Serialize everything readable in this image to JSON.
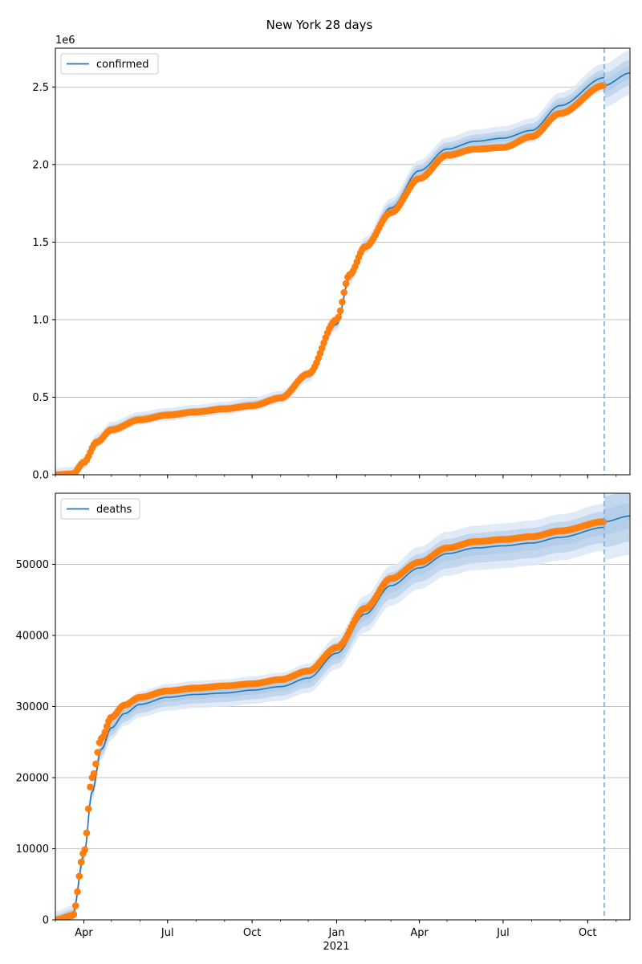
{
  "figure": {
    "title": "New York 28 days",
    "year_label": "2021"
  },
  "colors": {
    "model_line": "#1f77b4",
    "band_inner": "#a9c6e6",
    "band_outer": "#dde9f6",
    "observed": "#ff7f0e",
    "forecast_marker": "#7ba9d6",
    "grid": "#b0b0b0"
  },
  "chart_data": [
    {
      "type": "line",
      "panel": "top",
      "legend": "top-left",
      "grid_y": true,
      "grid_x": false,
      "xlim": [
        "2020-03-01",
        "2021-11-16"
      ],
      "ylim": [
        0,
        2750000
      ],
      "y_multiplier_label": "1e6",
      "y_ticks": [
        0,
        500000,
        1000000,
        1500000,
        2000000,
        2500000
      ],
      "y_tick_labels": [
        "0.0",
        "0.5",
        "1.0",
        "1.5",
        "2.0",
        "2.5"
      ],
      "x_ticks": [
        "2020-04-01",
        "2020-07-01",
        "2020-10-01",
        "2021-01-01",
        "2021-04-01",
        "2021-07-01",
        "2021-10-01"
      ],
      "x_tick_labels": [
        "Apr",
        "Jul",
        "Oct",
        "Jan",
        "Apr",
        "Jul",
        "Oct"
      ],
      "forecast_start": "2021-10-19",
      "series": [
        {
          "name": "confirmed",
          "role": "model",
          "points": [
            [
              "2020-03-01",
              0
            ],
            [
              "2020-03-20",
              10000
            ],
            [
              "2020-04-01",
              80000
            ],
            [
              "2020-04-15",
              220000
            ],
            [
              "2020-05-01",
              300000
            ],
            [
              "2020-06-01",
              365000
            ],
            [
              "2020-07-01",
              390000
            ],
            [
              "2020-08-01",
              410000
            ],
            [
              "2020-09-01",
              430000
            ],
            [
              "2020-10-01",
              455000
            ],
            [
              "2020-11-01",
              500000
            ],
            [
              "2020-12-01",
              640000
            ],
            [
              "2021-01-01",
              970000
            ],
            [
              "2021-01-15",
              1270000
            ],
            [
              "2021-02-01",
              1480000
            ],
            [
              "2021-03-01",
              1720000
            ],
            [
              "2021-04-01",
              1960000
            ],
            [
              "2021-05-01",
              2100000
            ],
            [
              "2021-06-01",
              2150000
            ],
            [
              "2021-07-01",
              2170000
            ],
            [
              "2021-08-01",
              2220000
            ],
            [
              "2021-09-01",
              2380000
            ],
            [
              "2021-10-19",
              2560000
            ]
          ]
        },
        {
          "role": "forecast",
          "points": [
            [
              "2021-10-19",
              2510000
            ],
            [
              "2021-11-16",
              2590000
            ]
          ]
        },
        {
          "role": "observed",
          "points": [
            [
              "2020-03-01",
              0
            ],
            [
              "2020-03-20",
              5000
            ],
            [
              "2020-04-01",
              80000
            ],
            [
              "2020-04-15",
              210000
            ],
            [
              "2020-05-01",
              290000
            ],
            [
              "2020-06-01",
              355000
            ],
            [
              "2020-07-01",
              385000
            ],
            [
              "2020-08-01",
              405000
            ],
            [
              "2020-09-01",
              425000
            ],
            [
              "2020-10-01",
              445000
            ],
            [
              "2020-11-01",
              495000
            ],
            [
              "2020-12-01",
              650000
            ],
            [
              "2021-01-01",
              1000000
            ],
            [
              "2021-01-15",
              1290000
            ],
            [
              "2021-02-01",
              1470000
            ],
            [
              "2021-03-01",
              1690000
            ],
            [
              "2021-04-01",
              1910000
            ],
            [
              "2021-05-01",
              2060000
            ],
            [
              "2021-06-01",
              2100000
            ],
            [
              "2021-07-01",
              2110000
            ],
            [
              "2021-08-01",
              2180000
            ],
            [
              "2021-09-01",
              2330000
            ],
            [
              "2021-10-19",
              2510000
            ]
          ]
        }
      ]
    },
    {
      "type": "line",
      "panel": "bottom",
      "legend": "top-left",
      "grid_y": true,
      "grid_x": false,
      "xlim": [
        "2020-03-01",
        "2021-11-16"
      ],
      "ylim": [
        0,
        60000
      ],
      "y_ticks": [
        0,
        10000,
        20000,
        30000,
        40000,
        50000
      ],
      "y_tick_labels": [
        "0",
        "10000",
        "20000",
        "30000",
        "40000",
        "50000"
      ],
      "x_ticks": [
        "2020-04-01",
        "2020-07-01",
        "2020-10-01",
        "2021-01-01",
        "2021-04-01",
        "2021-07-01",
        "2021-10-01"
      ],
      "x_tick_labels": [
        "Apr",
        "Jul",
        "Oct",
        "Jan",
        "Apr",
        "Jul",
        "Oct"
      ],
      "forecast_start": "2021-10-19",
      "series": [
        {
          "name": "deaths",
          "role": "model",
          "points": [
            [
              "2020-03-01",
              0
            ],
            [
              "2020-03-20",
              800
            ],
            [
              "2020-04-01",
              9000
            ],
            [
              "2020-04-10",
              18000
            ],
            [
              "2020-04-20",
              24000
            ],
            [
              "2020-05-01",
              27000
            ],
            [
              "2020-05-15",
              29000
            ],
            [
              "2020-06-01",
              30300
            ],
            [
              "2020-07-01",
              31300
            ],
            [
              "2020-08-01",
              31700
            ],
            [
              "2020-09-01",
              31900
            ],
            [
              "2020-10-01",
              32300
            ],
            [
              "2020-11-01",
              32800
            ],
            [
              "2020-12-01",
              34000
            ],
            [
              "2021-01-01",
              37500
            ],
            [
              "2021-02-01",
              43000
            ],
            [
              "2021-03-01",
              47000
            ],
            [
              "2021-04-01",
              49500
            ],
            [
              "2021-05-01",
              51500
            ],
            [
              "2021-06-01",
              52300
            ],
            [
              "2021-07-01",
              52600
            ],
            [
              "2021-08-01",
              53000
            ],
            [
              "2021-09-01",
              53800
            ],
            [
              "2021-10-19",
              55200
            ]
          ]
        },
        {
          "role": "forecast",
          "points": [
            [
              "2021-10-19",
              56000
            ],
            [
              "2021-11-16",
              56800
            ]
          ]
        },
        {
          "role": "observed",
          "points": [
            [
              "2020-03-01",
              0
            ],
            [
              "2020-03-20",
              600
            ],
            [
              "2020-04-01",
              9500
            ],
            [
              "2020-04-10",
              20000
            ],
            [
              "2020-04-20",
              25500
            ],
            [
              "2020-05-01",
              28500
            ],
            [
              "2020-05-15",
              30200
            ],
            [
              "2020-06-01",
              31300
            ],
            [
              "2020-07-01",
              32200
            ],
            [
              "2020-08-01",
              32600
            ],
            [
              "2020-09-01",
              32900
            ],
            [
              "2020-10-01",
              33200
            ],
            [
              "2020-11-01",
              33800
            ],
            [
              "2020-12-01",
              35000
            ],
            [
              "2021-01-01",
              38300
            ],
            [
              "2021-02-01",
              43800
            ],
            [
              "2021-03-01",
              48000
            ],
            [
              "2021-04-01",
              50300
            ],
            [
              "2021-05-01",
              52300
            ],
            [
              "2021-06-01",
              53200
            ],
            [
              "2021-07-01",
              53500
            ],
            [
              "2021-08-01",
              53900
            ],
            [
              "2021-09-01",
              54700
            ],
            [
              "2021-10-19",
              56000
            ]
          ]
        }
      ]
    }
  ]
}
